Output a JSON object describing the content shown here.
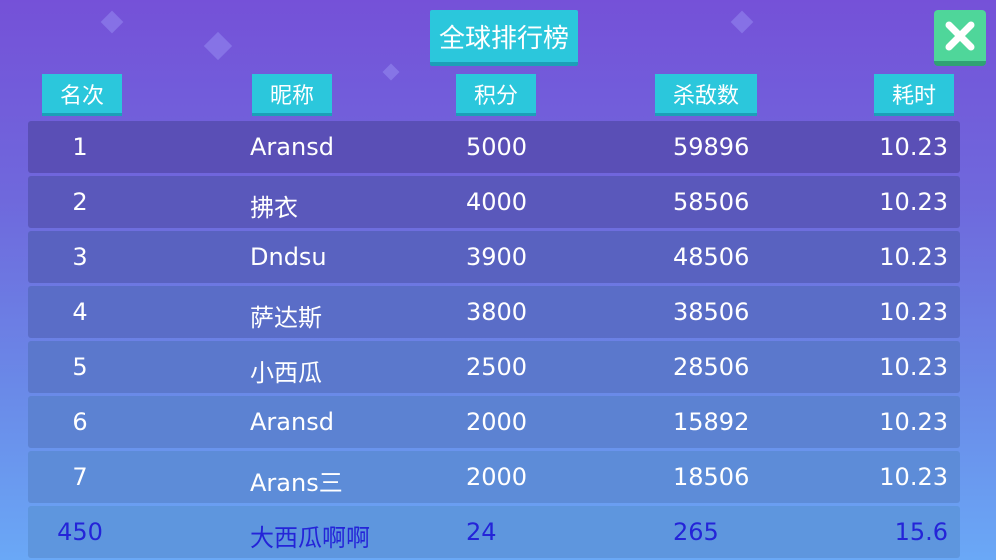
{
  "title": "全球排行榜",
  "close_icon": "close-x-icon",
  "headers": [
    "名次",
    "昵称",
    "积分",
    "杀敌数",
    "耗时"
  ],
  "rows": [
    [
      "1",
      "Aransd",
      "5000",
      "59896",
      "10.23"
    ],
    [
      "2",
      "拂衣",
      "4000",
      "58506",
      "10.23"
    ],
    [
      "3",
      "Dndsu",
      "3900",
      "48506",
      "10.23"
    ],
    [
      "4",
      "萨达斯",
      "3800",
      "38506",
      "10.23"
    ],
    [
      "5",
      "小西瓜",
      "2500",
      "28506",
      "10.23"
    ],
    [
      "6",
      "Aransd",
      "2000",
      "15892",
      "10.23"
    ],
    [
      "7",
      "Arans三",
      "2000",
      "18506",
      "10.23"
    ]
  ],
  "my_row": [
    "450",
    "大西瓜啊啊",
    "24",
    "265",
    "15.6"
  ],
  "colors": {
    "header_bg": "#2bc7dc",
    "close_bg": "#4fd69a",
    "my_row_text": "#2424d8"
  }
}
